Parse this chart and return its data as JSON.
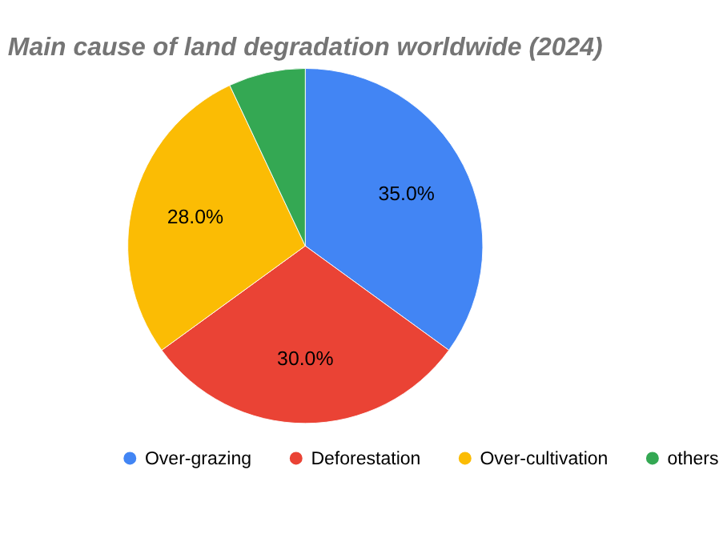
{
  "chart_data": {
    "type": "pie",
    "title": "Main cause of land degradation worldwide (2024)",
    "categories": [
      "Over-grazing",
      "Deforestation",
      "Over-cultivation",
      "others"
    ],
    "values": [
      35,
      30,
      28,
      7
    ],
    "colors": [
      "#4285f4",
      "#ea4335",
      "#fbbc04",
      "#34a853"
    ],
    "value_labels": [
      "35.0%",
      "30.0%",
      "28.0%",
      null
    ],
    "legend": "bottom"
  }
}
